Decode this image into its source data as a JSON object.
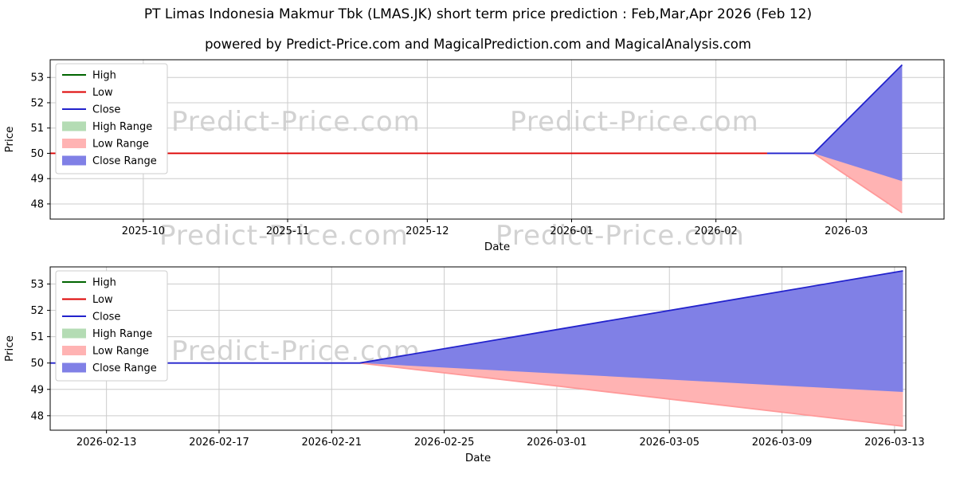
{
  "header": {
    "title": "PT Limas Indonesia Makmur Tbk (LMAS.JK) short term price prediction : Feb,Mar,Apr 2026 (Feb 12)",
    "subtitle": "powered by Predict-Price.com and MagicalPrediction.com and MagicalAnalysis.com"
  },
  "watermark": {
    "text": "Predict-Price.com"
  },
  "colors": {
    "high": "#006400",
    "low": "#dd0000",
    "close": "#2222cc",
    "low_soft": "#ff9999",
    "high_range": "#b4dcb4",
    "low_range": "#ffb3b3",
    "close_range": "#8080e6",
    "grid": "#cccccc",
    "frame": "#000000",
    "text": "#000000"
  },
  "chart_data": [
    {
      "type": "line",
      "title": "",
      "xlabel": "Date",
      "ylabel": "Price",
      "x_unit": "days since 2025-09-11",
      "xlim": [
        0,
        192
      ],
      "ylim": [
        47.4,
        53.7
      ],
      "grid": true,
      "legend_position": "upper left",
      "yticks": [
        48,
        49,
        50,
        51,
        52,
        53
      ],
      "xticks": [
        {
          "pos": 20,
          "label": "2025-10"
        },
        {
          "pos": 51,
          "label": "2025-11"
        },
        {
          "pos": 81,
          "label": "2025-12"
        },
        {
          "pos": 112,
          "label": "2026-01"
        },
        {
          "pos": 143,
          "label": "2026-02"
        },
        {
          "pos": 171,
          "label": "2026-03"
        }
      ],
      "legend": [
        {
          "label": "High",
          "type": "line",
          "color": "high"
        },
        {
          "label": "Low",
          "type": "line",
          "color": "low"
        },
        {
          "label": "Close",
          "type": "line",
          "color": "close"
        },
        {
          "label": "High Range",
          "type": "patch",
          "color": "high_range"
        },
        {
          "label": "Low Range",
          "type": "patch",
          "color": "low_range"
        },
        {
          "label": "Close Range",
          "type": "patch",
          "color": "close_range"
        }
      ],
      "bands": [
        {
          "name": "Low Range",
          "color": "low_range",
          "x": [
            164,
            183
          ],
          "top": [
            50,
            49.0
          ],
          "bottom": [
            50,
            47.65
          ]
        },
        {
          "name": "Close Range",
          "color": "close_range",
          "x": [
            164,
            183
          ],
          "top": [
            50,
            53.5
          ],
          "bottom": [
            50,
            48.9
          ]
        }
      ],
      "lines": [
        {
          "name": "Low",
          "color": "low",
          "x": [
            0,
            154
          ],
          "y": [
            50,
            50
          ]
        },
        {
          "name": "Low prediction",
          "color": "low_soft",
          "x": [
            164,
            183
          ],
          "y": [
            50,
            47.65
          ]
        },
        {
          "name": "Close",
          "color": "close",
          "x": [
            154,
            164,
            183
          ],
          "y": [
            50,
            50,
            53.5
          ]
        }
      ]
    },
    {
      "type": "line",
      "title": "",
      "xlabel": "Date",
      "ylabel": "Price",
      "x_unit": "days since 2026-02-11",
      "xlim": [
        0,
        30.4
      ],
      "ylim": [
        47.45,
        53.65
      ],
      "grid": true,
      "legend_position": "upper left",
      "yticks": [
        48,
        49,
        50,
        51,
        52,
        53
      ],
      "xticks": [
        {
          "pos": 2,
          "label": "2026-02-13"
        },
        {
          "pos": 6,
          "label": "2026-02-17"
        },
        {
          "pos": 10,
          "label": "2026-02-21"
        },
        {
          "pos": 14,
          "label": "2026-02-25"
        },
        {
          "pos": 18,
          "label": "2026-03-01"
        },
        {
          "pos": 22,
          "label": "2026-03-05"
        },
        {
          "pos": 26,
          "label": "2026-03-09"
        },
        {
          "pos": 30,
          "label": "2026-03-13"
        }
      ],
      "legend": [
        {
          "label": "High",
          "type": "line",
          "color": "high"
        },
        {
          "label": "Low",
          "type": "line",
          "color": "low"
        },
        {
          "label": "Close",
          "type": "line",
          "color": "close"
        },
        {
          "label": "High Range",
          "type": "patch",
          "color": "high_range"
        },
        {
          "label": "Low Range",
          "type": "patch",
          "color": "low_range"
        },
        {
          "label": "Close Range",
          "type": "patch",
          "color": "close_range"
        }
      ],
      "bands": [
        {
          "name": "Low Range",
          "color": "low_range",
          "x": [
            11,
            30.3
          ],
          "top": [
            50,
            49.0
          ],
          "bottom": [
            50,
            47.6
          ]
        },
        {
          "name": "Close Range",
          "color": "close_range",
          "x": [
            11,
            30.3
          ],
          "top": [
            50,
            53.5
          ],
          "bottom": [
            50,
            48.9
          ]
        }
      ],
      "lines": [
        {
          "name": "Low prediction",
          "color": "low_soft",
          "x": [
            11,
            30.3
          ],
          "y": [
            50,
            47.6
          ]
        },
        {
          "name": "Close",
          "color": "close",
          "x": [
            0,
            11,
            30.3
          ],
          "y": [
            50,
            50,
            53.5
          ]
        }
      ]
    }
  ]
}
